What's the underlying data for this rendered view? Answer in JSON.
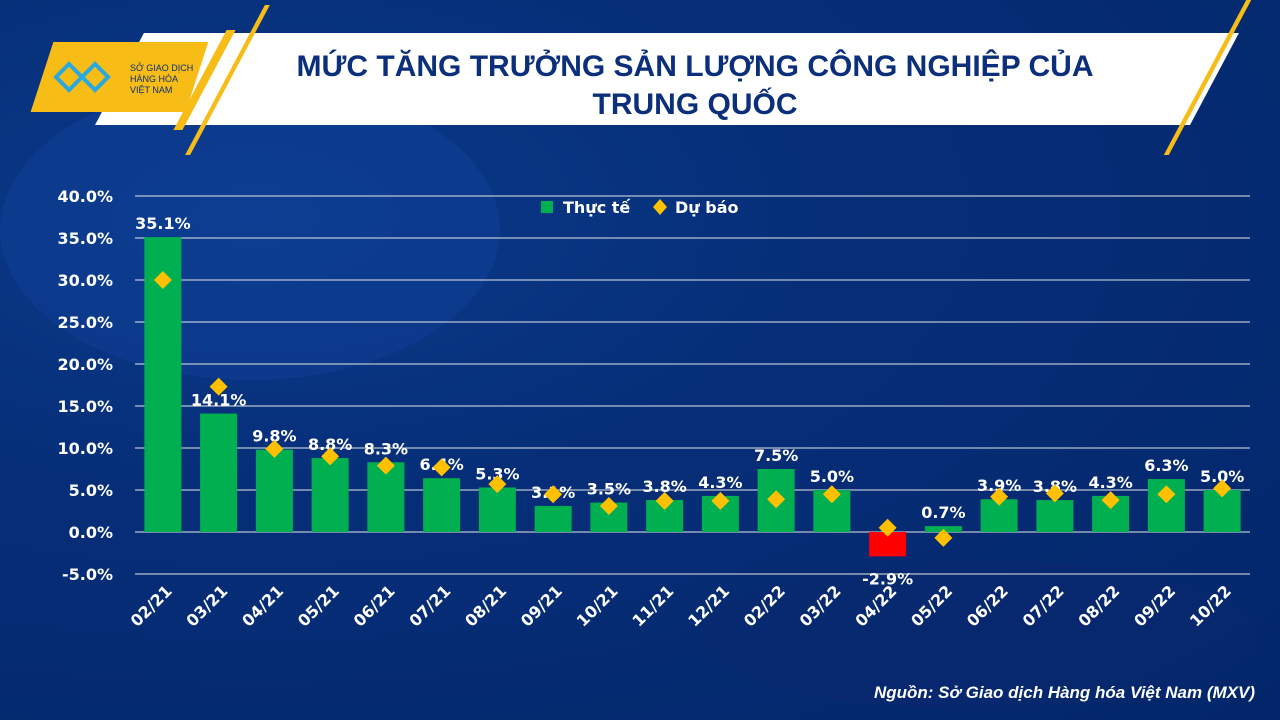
{
  "header": {
    "logo_text": [
      "SỞ GIAO DỊCH",
      "HÀNG HÓA",
      "VIỆT NAM"
    ],
    "title_line1": "MỨC TĂNG TRƯỞNG SẢN LƯỢNG CÔNG NGHIỆP CỦA",
    "title_line2": "TRUNG QUỐC"
  },
  "source": "Nguồn: Sở Giao dịch Hàng hóa Việt Nam (MXV)",
  "colors": {
    "actual": "#00b050",
    "actual_negative": "#ff0000",
    "forecast": "#ffc000",
    "background": "#062e78",
    "title": "#0b2f7a"
  },
  "chart_data": {
    "type": "bar",
    "title": "MỨC TĂNG TRƯỞNG SẢN LƯỢNG CÔNG NGHIỆP CỦA TRUNG QUỐC",
    "categories": [
      "02/21",
      "03/21",
      "04/21",
      "05/21",
      "06/21",
      "07/21",
      "08/21",
      "09/21",
      "10/21",
      "11/21",
      "12/21",
      "02/22",
      "03/22",
      "04/22",
      "05/22",
      "06/22",
      "07/22",
      "08/22",
      "09/22",
      "10/22"
    ],
    "series": [
      {
        "name": "Thực tế",
        "type": "bar",
        "values": [
          35.1,
          14.1,
          9.8,
          8.8,
          8.3,
          6.4,
          5.3,
          3.1,
          3.5,
          3.8,
          4.3,
          7.5,
          5.0,
          -2.9,
          0.7,
          3.9,
          3.8,
          4.3,
          6.3,
          5.0
        ],
        "labels": [
          "35.1%",
          "14.1%",
          "9.8%",
          "8.8%",
          "8.3%",
          "6.4%",
          "5.3%",
          "3.1%",
          "3.5%",
          "3.8%",
          "4.3%",
          "7.5%",
          "5.0%",
          "-2.9%",
          "0.7%",
          "3.9%",
          "3.8%",
          "4.3%",
          "6.3%",
          "5.0%"
        ]
      },
      {
        "name": "Dự báo",
        "type": "scatter",
        "marker": "diamond",
        "values": [
          30.0,
          17.3,
          9.9,
          9.0,
          7.9,
          7.7,
          5.7,
          4.5,
          3.1,
          3.7,
          3.7,
          3.9,
          4.5,
          0.5,
          -0.7,
          4.2,
          4.6,
          3.8,
          4.5,
          5.2
        ]
      }
    ],
    "yticks": [
      "-5.0%",
      "0.0%",
      "5.0%",
      "10.0%",
      "15.0%",
      "20.0%",
      "25.0%",
      "30.0%",
      "35.0%",
      "40.0%"
    ],
    "ylim": [
      -5,
      40
    ],
    "grid": true,
    "legend": "top-center"
  }
}
